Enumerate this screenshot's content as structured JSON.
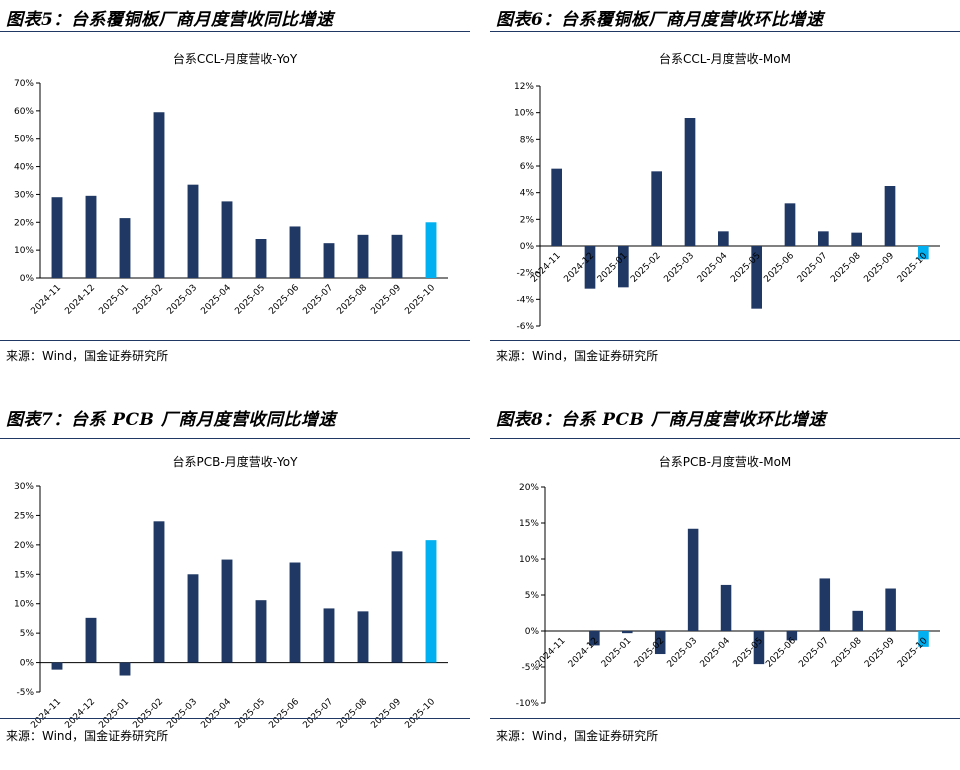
{
  "panels": [
    {
      "title": "图表5：台系覆铜板厂商月度营收同比增速",
      "source": "来源：Wind，国金证券研究所"
    },
    {
      "title": "图表6：台系覆铜板厂商月度营收环比增速",
      "source": "来源：Wind，国金证券研究所"
    },
    {
      "title": "图表7：台系 PCB 厂商月度营收同比增速",
      "source": "来源：Wind，国金证券研究所"
    },
    {
      "title": "图表8：台系 PCB 厂商月度营收环比增速",
      "source": "来源：Wind，国金证券研究所"
    }
  ],
  "colors": {
    "bar": "#1f3864",
    "highlight": "#00b0f0",
    "rule": "#1f3864"
  },
  "chart_data": [
    {
      "type": "bar",
      "title": "台系CCL-月度营收-YoY",
      "categories": [
        "2024-11",
        "2024-12",
        "2025-01",
        "2025-02",
        "2025-03",
        "2025-04",
        "2025-05",
        "2025-06",
        "2025-07",
        "2025-08",
        "2025-09",
        "2025-10"
      ],
      "values": [
        29,
        29.5,
        21.5,
        59.5,
        33.5,
        27.5,
        14,
        18.5,
        12.5,
        15.5,
        15.5,
        20
      ],
      "ylim": [
        0,
        70
      ],
      "yticks": [
        0,
        10,
        20,
        30,
        40,
        50,
        60,
        70
      ],
      "tick_labels": [
        "0%",
        "10%",
        "20%",
        "30%",
        "40%",
        "50%",
        "60%",
        "70%"
      ],
      "highlight_last": true
    },
    {
      "type": "bar",
      "title": "台系CCL-月度营收-MoM",
      "categories": [
        "2024-11",
        "2024-12",
        "2025-01",
        "2025-02",
        "2025-03",
        "2025-04",
        "2025-05",
        "2025-06",
        "2025-07",
        "2025-08",
        "2025-09",
        "2025-10"
      ],
      "values": [
        5.8,
        -3.2,
        -3.1,
        5.6,
        9.6,
        1.1,
        -4.7,
        3.2,
        1.1,
        1.0,
        4.5,
        -1.0
      ],
      "ylim": [
        -6,
        12
      ],
      "yticks": [
        -6,
        -4,
        -2,
        0,
        2,
        4,
        6,
        8,
        10,
        12
      ],
      "tick_labels": [
        "-6%",
        "-4%",
        "-2%",
        "0%",
        "2%",
        "4%",
        "6%",
        "8%",
        "10%",
        "12%"
      ],
      "highlight_last": true
    },
    {
      "type": "bar",
      "title": "台系PCB-月度营收-YoY",
      "categories": [
        "2024-11",
        "2024-12",
        "2025-01",
        "2025-02",
        "2025-03",
        "2025-04",
        "2025-05",
        "2025-06",
        "2025-07",
        "2025-08",
        "2025-09",
        "2025-10"
      ],
      "values": [
        -1.2,
        7.6,
        -2.2,
        24,
        15,
        17.5,
        10.6,
        17,
        9.2,
        8.7,
        18.9,
        20.8
      ],
      "ylim": [
        -5,
        30
      ],
      "yticks": [
        -5,
        0,
        5,
        10,
        15,
        20,
        25,
        30
      ],
      "tick_labels": [
        "-5%",
        "0%",
        "5%",
        "10%",
        "15%",
        "20%",
        "25%",
        "30%"
      ],
      "highlight_last": true
    },
    {
      "type": "bar",
      "title": "台系PCB-月度营收-MoM",
      "categories": [
        "2024-11",
        "2024-12",
        "2025-01",
        "2025-02",
        "2025-03",
        "2025-04",
        "2025-05",
        "2025-06",
        "2025-07",
        "2025-08",
        "2025-09",
        "2025-10"
      ],
      "values": [
        0,
        -2.0,
        -0.3,
        -3.2,
        14.2,
        6.4,
        -4.6,
        -1.3,
        7.3,
        2.8,
        5.9,
        -2.2
      ],
      "ylim": [
        -10,
        20
      ],
      "yticks": [
        -10,
        -5,
        0,
        5,
        10,
        15,
        20
      ],
      "tick_labels": [
        "-10%",
        "-5%",
        "0%",
        "5%",
        "10%",
        "15%",
        "20%"
      ],
      "highlight_last": true
    }
  ]
}
